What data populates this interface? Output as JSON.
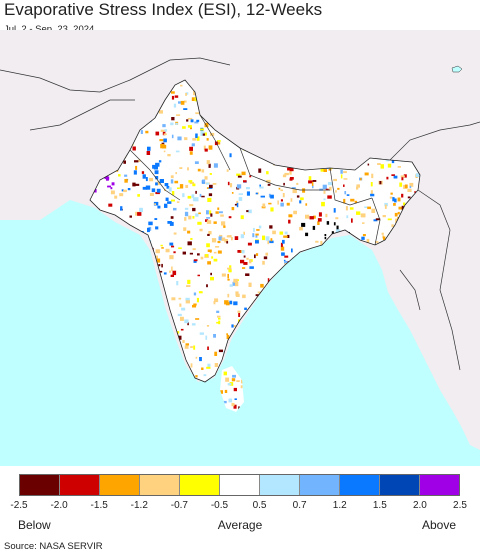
{
  "header": {
    "title": "Evaporative Stress Index (ESI), 12-Weeks",
    "subtitle": "Jul. 2 - Sep. 23, 2024"
  },
  "map": {
    "region": "South Asia",
    "colors": {
      "ocean": "#bfffff",
      "land_outside": "#f1edf1",
      "border": "#222222"
    }
  },
  "legend": {
    "colors": [
      "#6b0000",
      "#cf0000",
      "#ffa500",
      "#ffd280",
      "#ffff00",
      "#ffffff",
      "#b3e6ff",
      "#73b4ff",
      "#0a78ff",
      "#0046b4",
      "#a000e6"
    ],
    "tick_labels": [
      "-2.5",
      "-2.0",
      "-1.5",
      "-1.2",
      "-0.7",
      "-0.5",
      "0.5",
      "0.7",
      "1.2",
      "1.5",
      "2.0",
      "2.5"
    ],
    "below_label": "Below",
    "average_label": "Average",
    "above_label": "Above"
  },
  "footer": {
    "source": "Source: NASA SERVIR"
  }
}
